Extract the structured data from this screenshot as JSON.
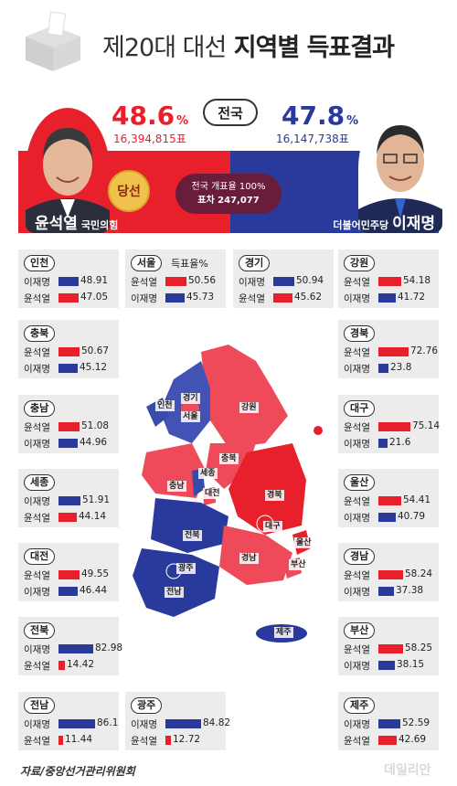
{
  "header": {
    "title_thin": "제20대 대선",
    "title_bold": "지역별 득표결과"
  },
  "national": {
    "badge": "전국",
    "left": {
      "pct": "48.6",
      "pct_unit": "%",
      "votes": "16,394,815표",
      "name": "윤석열",
      "party": "국민의힘"
    },
    "right": {
      "pct": "47.8",
      "pct_unit": "%",
      "votes": "16,147,738표",
      "name": "이재명",
      "party": "더불어민주당"
    },
    "elected": "당선",
    "count_rate": "전국 개표율 100%",
    "diff": "표차 247,077"
  },
  "colors": {
    "red": "#e8202c",
    "blue": "#2a3a9c"
  },
  "chart_data": {
    "type": "bar",
    "title": "제20대 대선 지역별 득표결과",
    "series_names": [
      "윤석열",
      "이재명"
    ],
    "regions": [
      {
        "name": "인천",
        "rows": [
          {
            "cand": "이재명",
            "party": "blue",
            "value": 48.91
          },
          {
            "cand": "윤석열",
            "party": "red",
            "value": 47.05
          }
        ]
      },
      {
        "name": "서울",
        "note": "득표율%",
        "rows": [
          {
            "cand": "윤석열",
            "party": "red",
            "value": 50.56
          },
          {
            "cand": "이재명",
            "party": "blue",
            "value": 45.73
          }
        ]
      },
      {
        "name": "경기",
        "rows": [
          {
            "cand": "이재명",
            "party": "blue",
            "value": 50.94
          },
          {
            "cand": "윤석열",
            "party": "red",
            "value": 45.62
          }
        ]
      },
      {
        "name": "강원",
        "rows": [
          {
            "cand": "윤석열",
            "party": "red",
            "value": 54.18
          },
          {
            "cand": "이재명",
            "party": "blue",
            "value": 41.72
          }
        ]
      },
      {
        "name": "충북",
        "rows": [
          {
            "cand": "윤석열",
            "party": "red",
            "value": 50.67
          },
          {
            "cand": "이재명",
            "party": "blue",
            "value": 45.12
          }
        ]
      },
      {
        "name": "경북",
        "rows": [
          {
            "cand": "윤석열",
            "party": "red",
            "value": 72.76
          },
          {
            "cand": "이재명",
            "party": "blue",
            "value": 23.8
          }
        ]
      },
      {
        "name": "충남",
        "rows": [
          {
            "cand": "윤석열",
            "party": "red",
            "value": 51.08
          },
          {
            "cand": "이재명",
            "party": "blue",
            "value": 44.96
          }
        ]
      },
      {
        "name": "대구",
        "rows": [
          {
            "cand": "윤석열",
            "party": "red",
            "value": 75.14
          },
          {
            "cand": "이재명",
            "party": "blue",
            "value": 21.6
          }
        ]
      },
      {
        "name": "세종",
        "rows": [
          {
            "cand": "이재명",
            "party": "blue",
            "value": 51.91
          },
          {
            "cand": "윤석열",
            "party": "red",
            "value": 44.14
          }
        ]
      },
      {
        "name": "울산",
        "rows": [
          {
            "cand": "윤석열",
            "party": "red",
            "value": 54.41
          },
          {
            "cand": "이재명",
            "party": "blue",
            "value": 40.79
          }
        ]
      },
      {
        "name": "대전",
        "rows": [
          {
            "cand": "윤석열",
            "party": "red",
            "value": 49.55
          },
          {
            "cand": "이재명",
            "party": "blue",
            "value": 46.44
          }
        ]
      },
      {
        "name": "경남",
        "rows": [
          {
            "cand": "윤석열",
            "party": "red",
            "value": 58.24
          },
          {
            "cand": "이재명",
            "party": "blue",
            "value": 37.38
          }
        ]
      },
      {
        "name": "전북",
        "rows": [
          {
            "cand": "이재명",
            "party": "blue",
            "value": 82.98
          },
          {
            "cand": "윤석열",
            "party": "red",
            "value": 14.42
          }
        ]
      },
      {
        "name": "부산",
        "rows": [
          {
            "cand": "윤석열",
            "party": "red",
            "value": 58.25
          },
          {
            "cand": "이재명",
            "party": "blue",
            "value": 38.15
          }
        ]
      },
      {
        "name": "전남",
        "rows": [
          {
            "cand": "이재명",
            "party": "blue",
            "value": 86.1
          },
          {
            "cand": "윤석열",
            "party": "red",
            "value": 11.44
          }
        ]
      },
      {
        "name": "광주",
        "rows": [
          {
            "cand": "이재명",
            "party": "blue",
            "value": 84.82
          },
          {
            "cand": "윤석열",
            "party": "red",
            "value": 12.72
          }
        ]
      },
      {
        "name": "제주",
        "rows": [
          {
            "cand": "이재명",
            "party": "blue",
            "value": 52.59
          },
          {
            "cand": "윤석열",
            "party": "red",
            "value": 42.69
          }
        ]
      }
    ]
  },
  "map_labels": [
    "인천",
    "경기",
    "서울",
    "강원",
    "충북",
    "세종",
    "충남",
    "대전",
    "경북",
    "대구",
    "전북",
    "울산",
    "광주",
    "경남",
    "부산",
    "전남",
    "제주"
  ],
  "footer": {
    "source": "자료/중앙선거관리위원회",
    "watermark": "데일리안"
  }
}
